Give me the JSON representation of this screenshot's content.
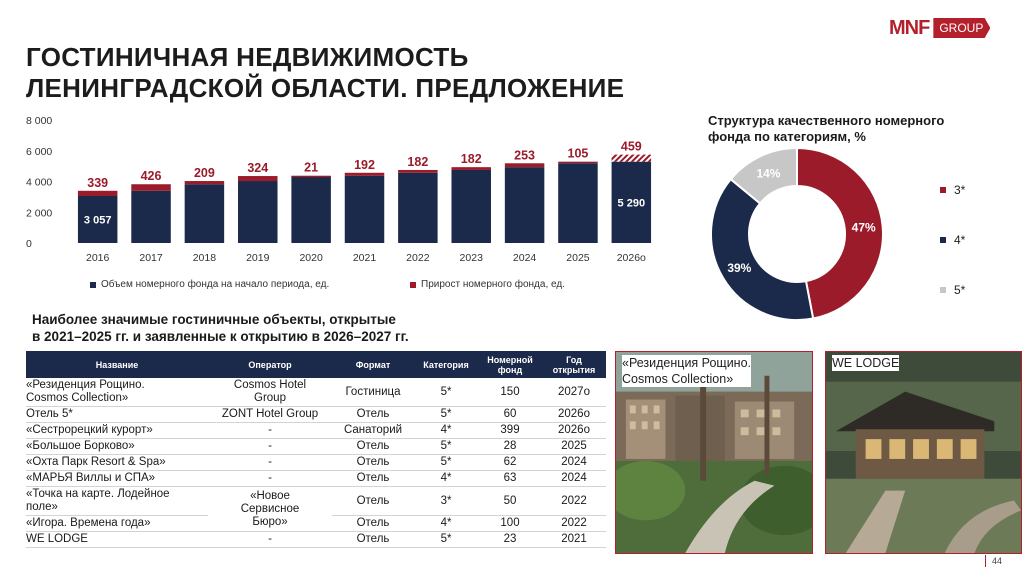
{
  "header": {
    "title_line1": "ГОСТИНИЧНАЯ НЕДВИЖИМОСТЬ",
    "title_line2": "ЛЕНИНГРАДСКОЙ ОБЛАСТИ. ПРЕДЛОЖЕНИЕ",
    "logo_mark": "MNF",
    "logo_group": "GROUP"
  },
  "chart_data": [
    {
      "type": "bar",
      "stacked": true,
      "categories": [
        "2016",
        "2017",
        "2018",
        "2019",
        "2020",
        "2021",
        "2022",
        "2023",
        "2024",
        "2025",
        "2026о"
      ],
      "series": [
        {
          "name": "Объем номерного фонда на начало периода, ед.",
          "values": [
            3057,
            3396,
            3822,
            4031,
            4355,
            4376,
            4568,
            4750,
            4932,
            5185,
            5290
          ],
          "color": "#1b2a4a"
        },
        {
          "name": "Прирост номерного фонда, ед.",
          "values": [
            339,
            426,
            209,
            324,
            21,
            192,
            182,
            182,
            253,
            105,
            459
          ],
          "color": "#9b1b2a"
        }
      ],
      "value_labels_base": [
        "3 057",
        "",
        "",
        "",
        "",
        "",
        "",
        "",
        "",
        "",
        "5 290"
      ],
      "value_labels_top": [
        "339",
        "426",
        "209",
        "324",
        "21",
        "192",
        "182",
        "182",
        "253",
        "105",
        "459"
      ],
      "yticks": [
        "0",
        "2 000",
        "4 000",
        "6 000",
        "8 000"
      ],
      "ylim": [
        0,
        8000
      ],
      "legend_position": "bottom",
      "hatched_last_increment": true
    },
    {
      "type": "pie",
      "donut": true,
      "title": "Структура качественного номерного фонда по категориям, %",
      "labels": [
        "3*",
        "4*",
        "5*"
      ],
      "values": [
        47,
        39,
        14
      ],
      "value_labels": [
        "47%",
        "39%",
        "14%"
      ],
      "colors": [
        "#9b1b2a",
        "#1b2a4a",
        "#c7c7c7"
      ],
      "legend_position": "right"
    }
  ],
  "table": {
    "heading_line1": "Наиболее значимые гостиничные объекты, открытые",
    "heading_line2": "в 2021–2025 гг. и заявленные к открытию в 2026–2027 гг.",
    "columns": {
      "name": "Название",
      "operator": "Оператор",
      "format": "Формат",
      "category": "Категория",
      "rooms_l1": "Номерной",
      "rooms_l2": "фонд",
      "year_l1": "Год",
      "year_l2": "открытия"
    },
    "rows": [
      {
        "name_l1": "«Резиденция Рощино.",
        "name_l2": "Cosmos Collection»",
        "operator_l1": "Cosmos Hotel",
        "operator_l2": "Group",
        "format": "Гостиница",
        "category": "5*",
        "rooms": "150",
        "year": "2027о"
      },
      {
        "name": "Отель 5*",
        "operator": "ZONT Hotel Group",
        "format": "Отель",
        "category": "5*",
        "rooms": "60",
        "year": "2026о"
      },
      {
        "name": "«Сестрорецкий курорт»",
        "operator": "-",
        "format": "Санаторий",
        "category": "4*",
        "rooms": "399",
        "year": "2026о"
      },
      {
        "name": "«Большое Борково»",
        "operator": "-",
        "format": "Отель",
        "category": "5*",
        "rooms": "28",
        "year": "2025"
      },
      {
        "name": "«Охта Парк Resort & Spa»",
        "operator": "-",
        "format": "Отель",
        "category": "5*",
        "rooms": "62",
        "year": "2024"
      },
      {
        "name": "«МАРЬЯ Виллы и СПА»",
        "operator": "-",
        "format": "Отель",
        "category": "4*",
        "rooms": "63",
        "year": "2024"
      },
      {
        "name_l1": "«Точка на карте. Лодейное",
        "name_l2": "поле»",
        "format": "Отель",
        "category": "3*",
        "rooms": "50",
        "year": "2022"
      },
      {
        "name": "«Игора. Времена года»",
        "format": "Отель",
        "category": "4*",
        "rooms": "100",
        "year": "2022"
      },
      {
        "name": "WE LODGE",
        "operator": "-",
        "format": "Отель",
        "category": "5*",
        "rooms": "23",
        "year": "2021"
      }
    ],
    "merged_operator_l1": "«Новое",
    "merged_operator_l2": "Сервисное",
    "merged_operator_l3": "Бюро»"
  },
  "photos": {
    "card1_caption_l1": "«Резиденция Рощино.",
    "card1_caption_l2": "Cosmos Collection»",
    "card2_caption": "WE LODGE"
  },
  "page_number": "44"
}
